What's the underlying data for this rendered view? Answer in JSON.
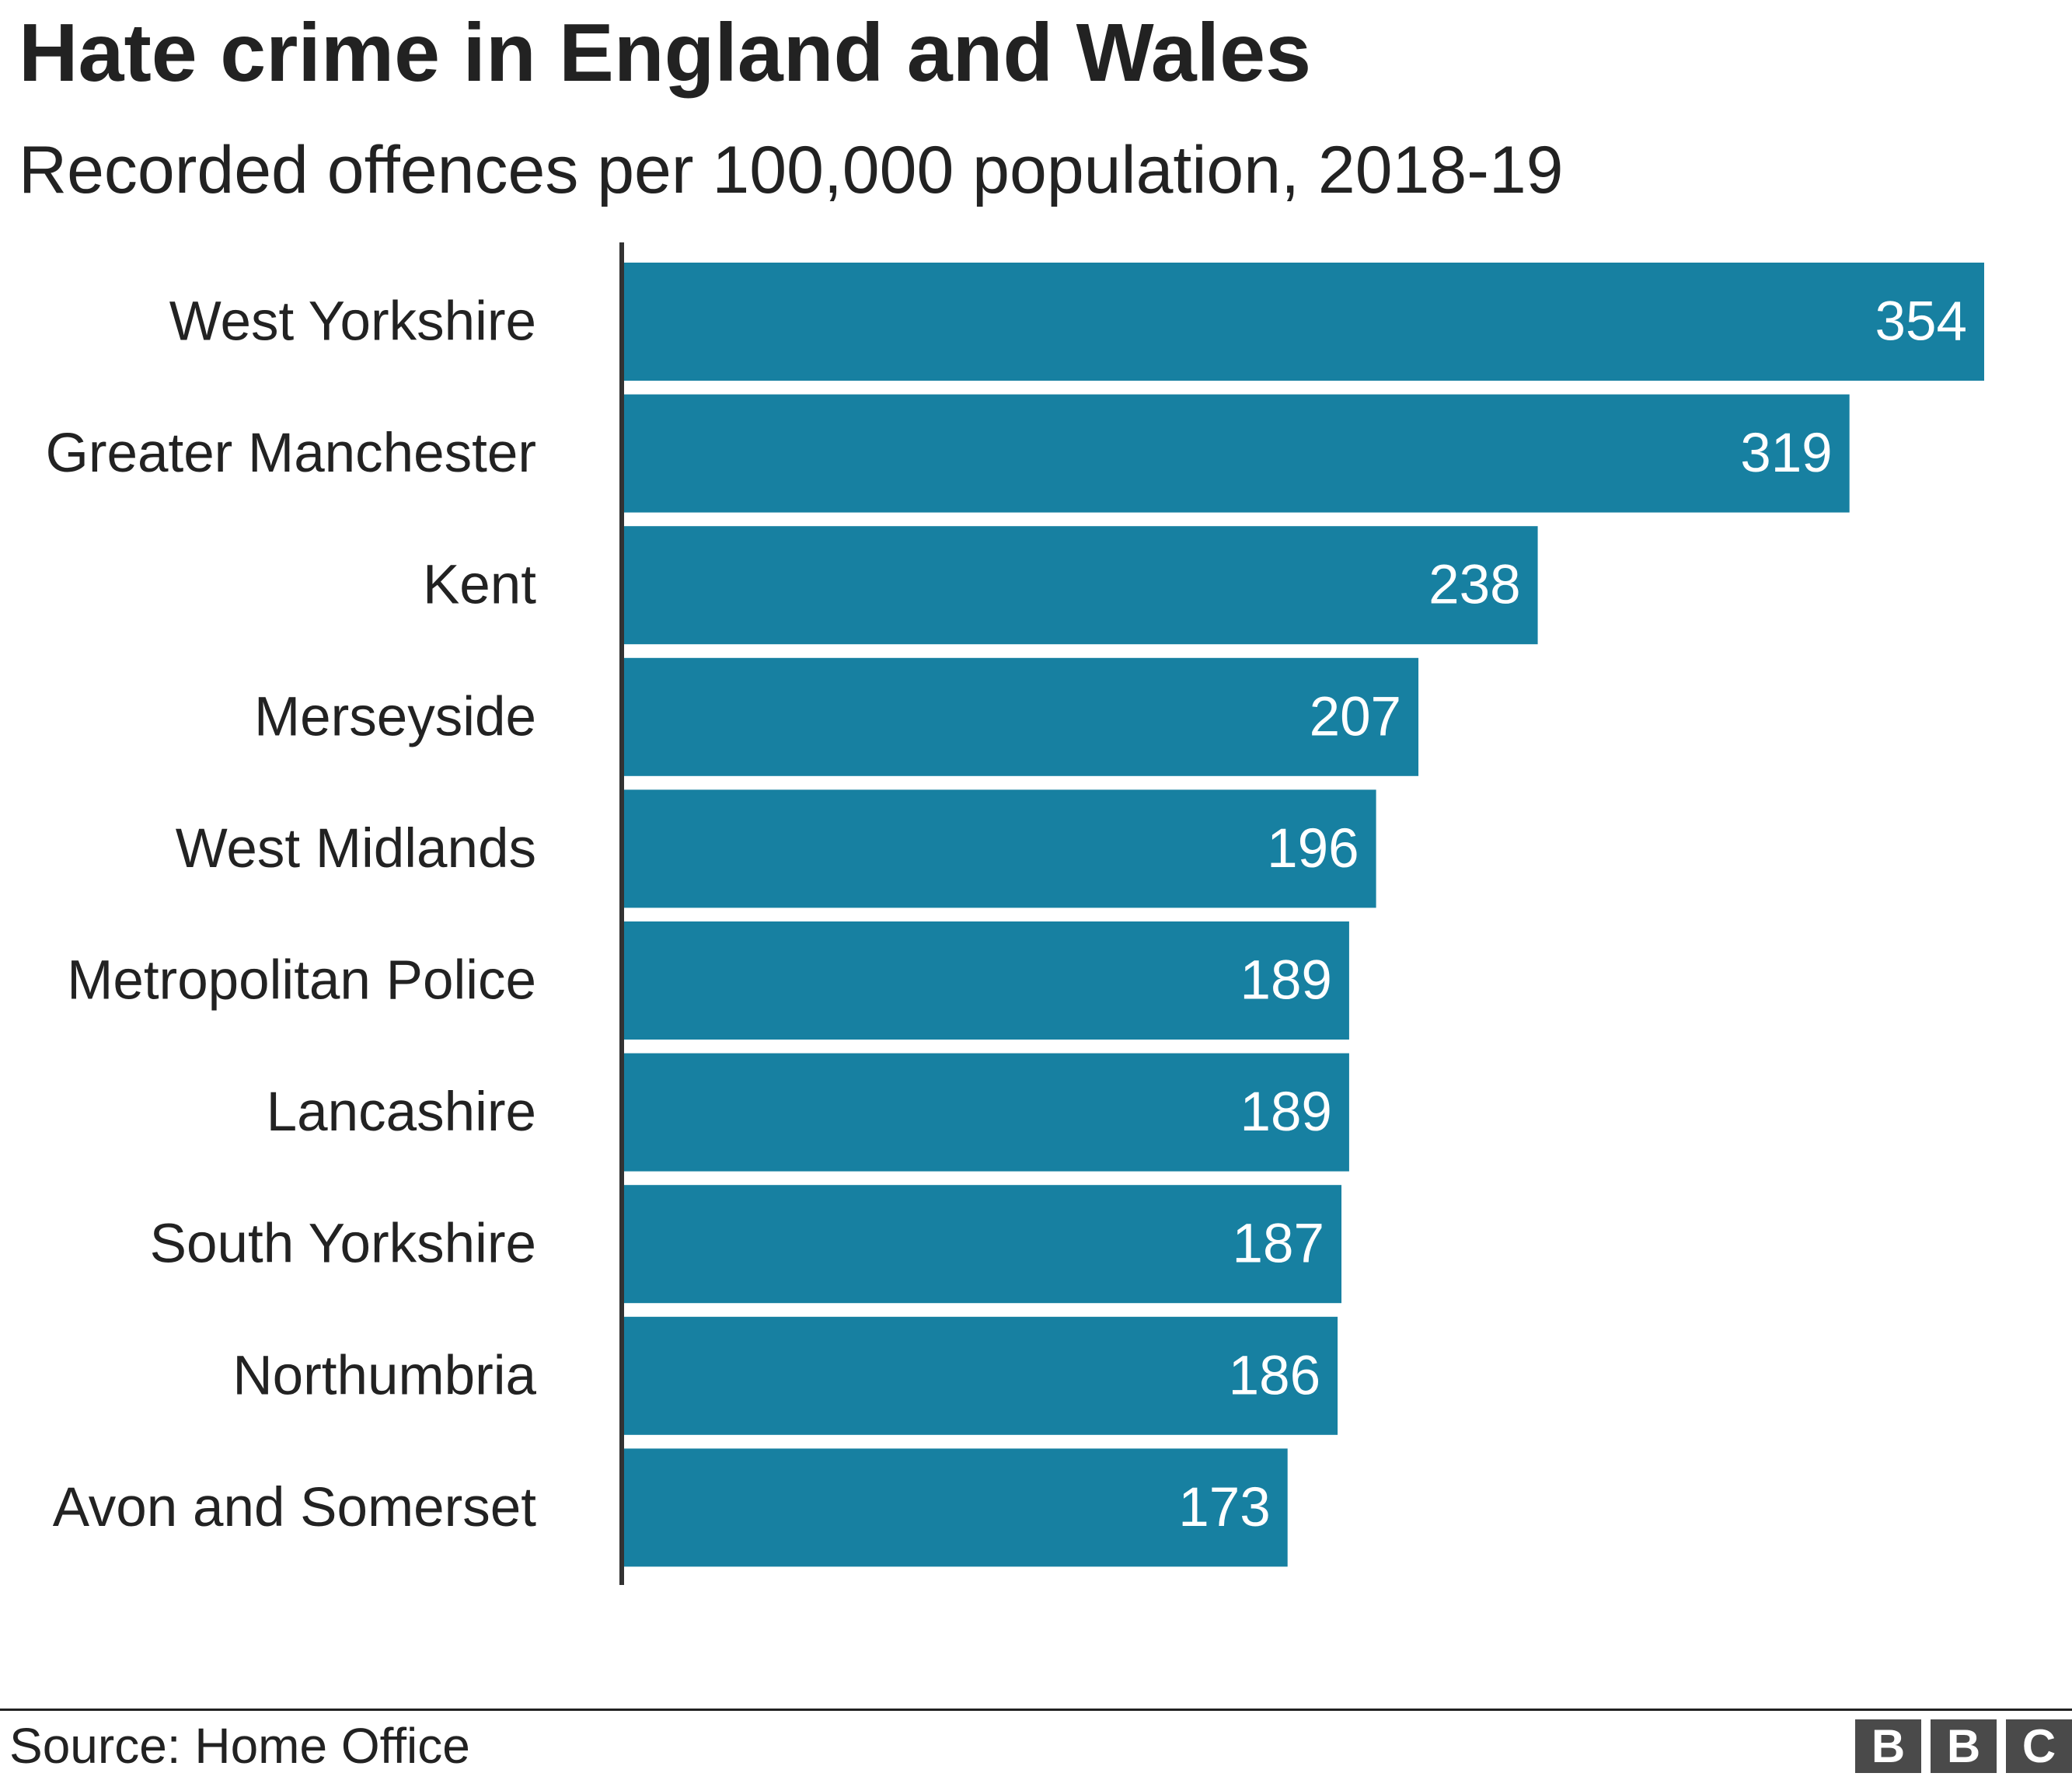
{
  "title": "Hate crime in England and Wales",
  "subtitle": "Recorded offences per 100,000 population, 2018-19",
  "source": "Source: Home Office",
  "logo": {
    "letters": [
      "B",
      "B",
      "C"
    ]
  },
  "colors": {
    "bar": "#1780a1",
    "axis": "#333333",
    "text": "#222222",
    "value_label": "#ffffff"
  },
  "chart_data": {
    "type": "bar",
    "orientation": "horizontal",
    "categories": [
      "West Yorkshire",
      "Greater Manchester",
      "Kent",
      "Merseyside",
      "West Midlands",
      "Metropolitan Police",
      "Lancashire",
      "South Yorkshire",
      "Northumbria",
      "Avon and Somerset"
    ],
    "values": [
      354,
      319,
      238,
      207,
      196,
      189,
      189,
      187,
      186,
      173
    ],
    "data_labels": true,
    "title": "Hate crime in England and Wales",
    "subtitle": "Recorded offences per 100,000 population, 2018-19",
    "xlabel": "",
    "ylabel": "",
    "xlim": [
      0,
      354
    ],
    "grid": false,
    "legend": "none"
  }
}
